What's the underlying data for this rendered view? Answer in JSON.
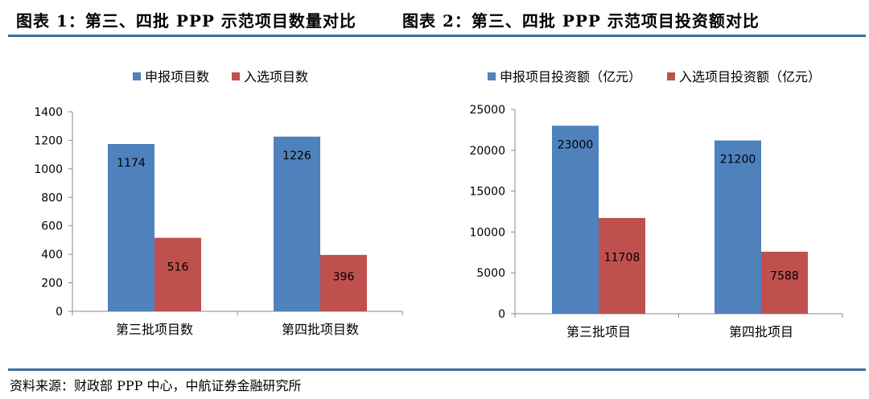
{
  "figures": {
    "left_title": "图表 1：第三、四批 PPP 示范项目数量对比",
    "right_title": "图表 2：第三、四批 PPP 示范项目投资额对比"
  },
  "source": "资料来源：财政部 PPP 中心，中航证券金融研究所",
  "chart_data": [
    {
      "type": "bar",
      "categories": [
        "第三批项目数",
        "第四批项目数"
      ],
      "series": [
        {
          "name": "申报项目数",
          "values": [
            1174,
            1226
          ],
          "color": "#4f81bd"
        },
        {
          "name": "入选项目数",
          "values": [
            516,
            396
          ],
          "color": "#c0504d"
        }
      ],
      "ylim": [
        0,
        1400
      ],
      "yticks": [
        0,
        200,
        400,
        600,
        800,
        1000,
        1200,
        1400
      ],
      "legend": "top",
      "grid": false
    },
    {
      "type": "bar",
      "categories": [
        "第三批项目",
        "第四批项目"
      ],
      "series": [
        {
          "name": "申报项目投资额（亿元）",
          "values": [
            23000,
            21200
          ],
          "color": "#4f81bd"
        },
        {
          "name": "入选项目投资额（亿元）",
          "values": [
            11708,
            7588
          ],
          "color": "#c0504d"
        }
      ],
      "ylim": [
        0,
        25000
      ],
      "yticks": [
        0,
        5000,
        10000,
        15000,
        20000,
        25000
      ],
      "legend": "top",
      "grid": false
    }
  ]
}
